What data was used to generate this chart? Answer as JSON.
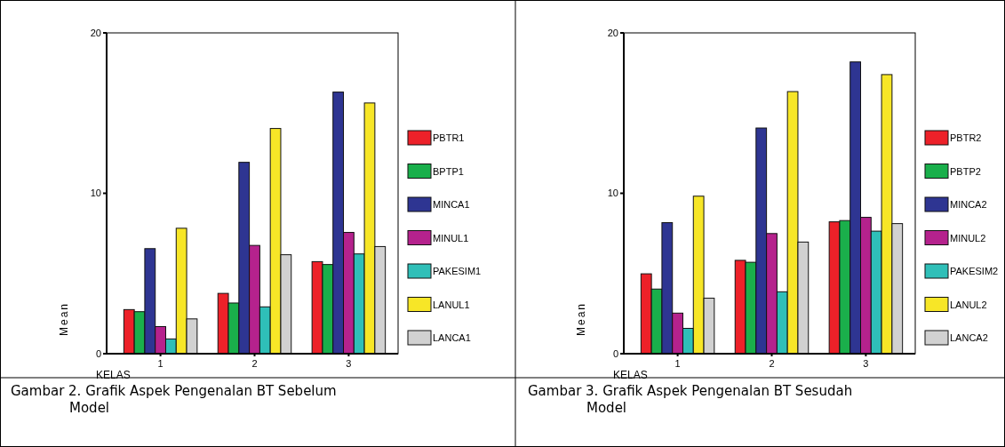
{
  "chart_data": [
    {
      "type": "bar",
      "xlabel": "KELAS",
      "ylabel": "Mean",
      "categories": [
        "1",
        "2",
        "3"
      ],
      "ylim": [
        0,
        20
      ],
      "yticks": [
        0,
        10,
        20
      ],
      "legend": "right",
      "grid": false,
      "annotations": [
        "Gambar 2. Grafik Aspek Pengenalan BT Sebelum Model"
      ],
      "series": [
        {
          "name": "PBTR1",
          "color": "#ed2129",
          "values": [
            2.75,
            3.76,
            5.74
          ]
        },
        {
          "name": "BPTP1",
          "color": "#1aaf4b",
          "values": [
            2.62,
            3.16,
            5.56
          ]
        },
        {
          "name": "MINCA1",
          "color": "#2e3592",
          "values": [
            6.55,
            11.93,
            16.31
          ]
        },
        {
          "name": "MINUL1",
          "color": "#b5228d",
          "values": [
            1.69,
            6.75,
            7.56
          ]
        },
        {
          "name": "PAKESIM1",
          "color": "#2fbfb8",
          "values": [
            0.92,
            2.92,
            6.22
          ]
        },
        {
          "name": "LANUL1",
          "color": "#f7e627",
          "values": [
            7.82,
            14.04,
            15.63
          ]
        },
        {
          "name": "LANCA1",
          "color": "#d1d1d1",
          "values": [
            2.17,
            6.17,
            6.68
          ]
        }
      ]
    },
    {
      "type": "bar",
      "xlabel": "KELAS",
      "ylabel": "Mean",
      "categories": [
        "1",
        "2",
        "3"
      ],
      "ylim": [
        0,
        20
      ],
      "yticks": [
        0,
        10,
        20
      ],
      "legend": "right",
      "grid": false,
      "annotations": [
        "Gambar 3. Grafik Aspek Pengenalan BT Sesudah Model"
      ],
      "series": [
        {
          "name": "PBTR2",
          "color": "#ed2129",
          "values": [
            4.98,
            5.82,
            8.22
          ]
        },
        {
          "name": "PBTP2",
          "color": "#1aaf4b",
          "values": [
            4.03,
            5.7,
            8.3
          ]
        },
        {
          "name": "MINCA2",
          "color": "#2e3592",
          "values": [
            8.17,
            14.07,
            18.19
          ]
        },
        {
          "name": "MINUL2",
          "color": "#b5228d",
          "values": [
            2.53,
            7.49,
            8.5
          ]
        },
        {
          "name": "PAKESIM2",
          "color": "#2fbfb8",
          "values": [
            1.58,
            3.86,
            7.64
          ]
        },
        {
          "name": "LANUL2",
          "color": "#f7e627",
          "values": [
            9.82,
            16.34,
            17.4
          ]
        },
        {
          "name": "LANCA2",
          "color": "#d1d1d1",
          "values": [
            3.46,
            6.96,
            8.11
          ]
        }
      ]
    }
  ]
}
